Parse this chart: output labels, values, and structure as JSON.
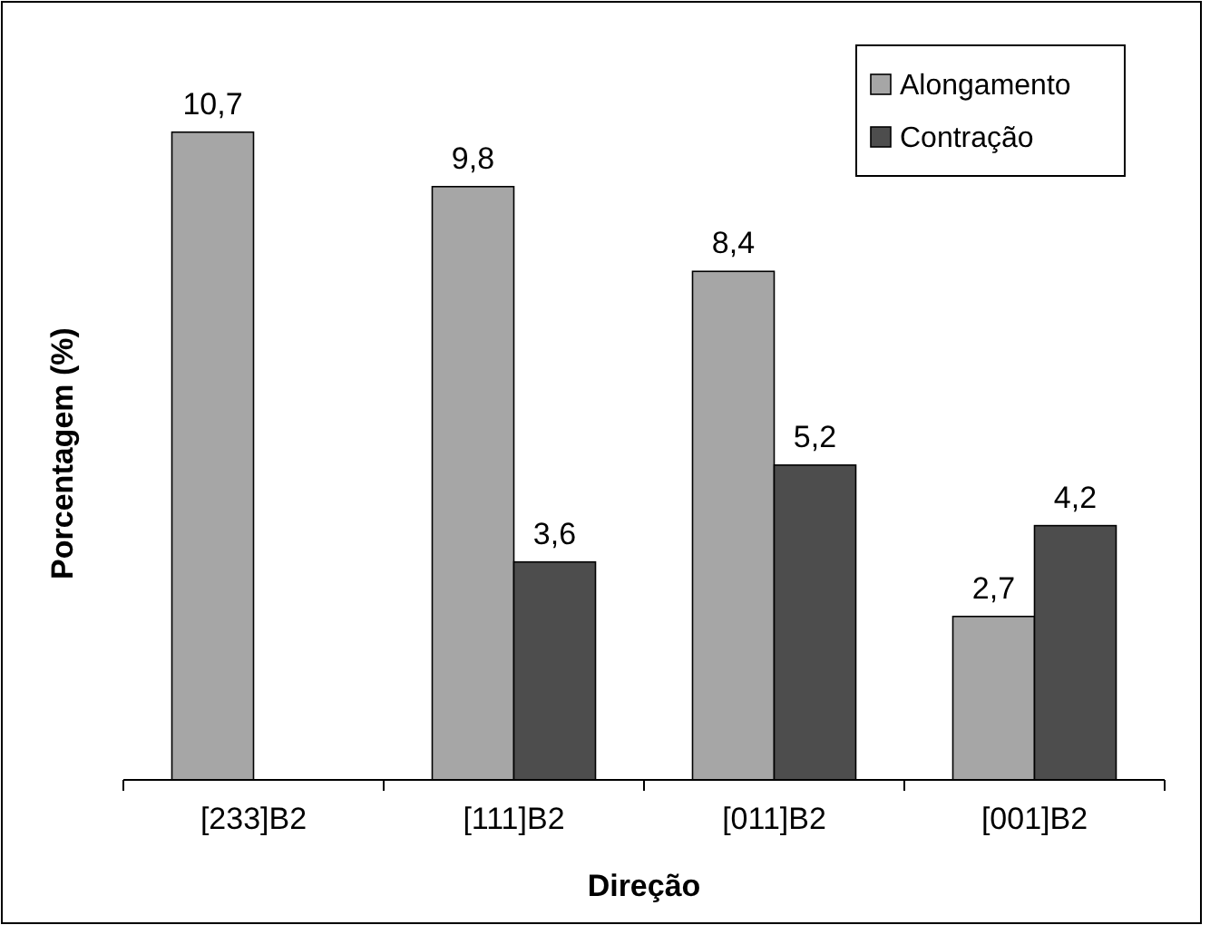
{
  "chart_data": {
    "type": "bar",
    "xlabel": "Direção",
    "ylabel": "Porcentagem (%)",
    "categories": [
      "[233]B2",
      "[111]B2",
      "[011]B2",
      "[001]B2"
    ],
    "series": [
      {
        "name": "Alongamento",
        "color": "#a6a6a6",
        "values": [
          10.7,
          9.8,
          8.4,
          2.7
        ],
        "value_labels": [
          "10,7",
          "9,8",
          "8,4",
          "2,7"
        ]
      },
      {
        "name": "Contração",
        "color": "#4d4d4d",
        "values": [
          null,
          3.6,
          5.2,
          4.2
        ],
        "value_labels": [
          null,
          "3,6",
          "5,2",
          "4,2"
        ]
      }
    ],
    "legend": "top right"
  }
}
